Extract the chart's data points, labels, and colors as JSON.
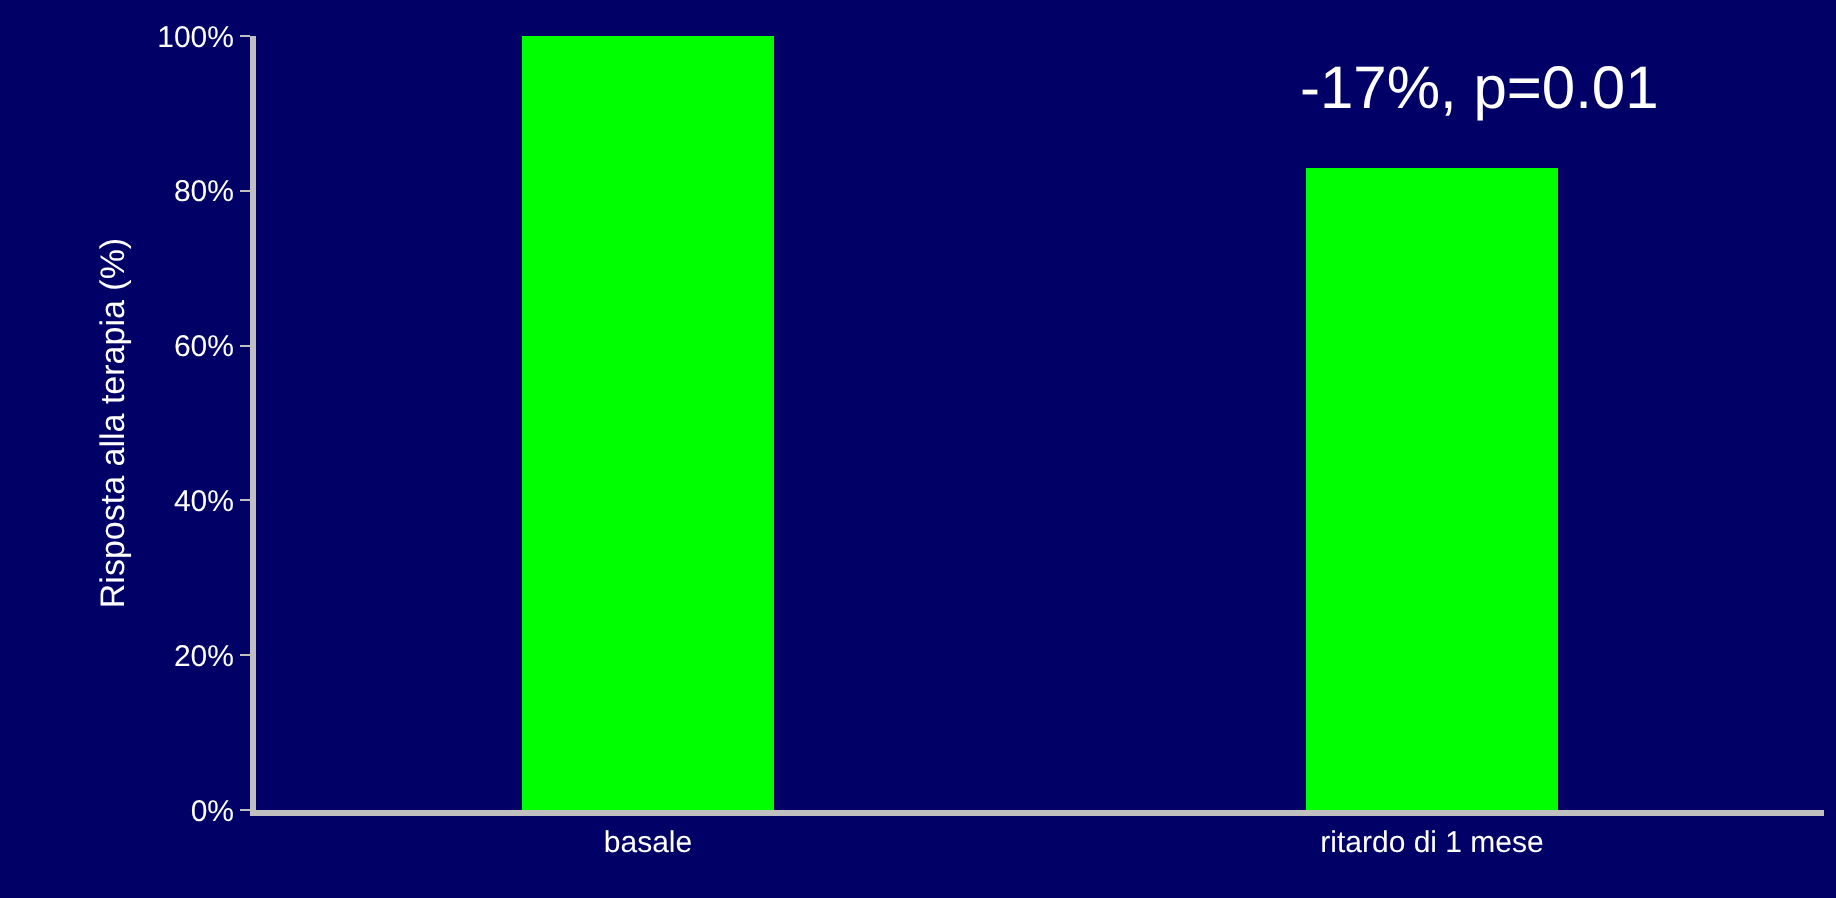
{
  "chart_data": {
    "type": "bar",
    "ylabel": "Risposta alla terapia (%)",
    "categories": [
      "basale",
      "ritardo di 1 mese"
    ],
    "values": [
      100,
      83
    ],
    "color": "#00ff00",
    "ylim": [
      0,
      100
    ],
    "yticks": [
      {
        "value": 0,
        "label": "0%"
      },
      {
        "value": 20,
        "label": "20%"
      },
      {
        "value": 40,
        "label": "40%"
      },
      {
        "value": 60,
        "label": "60%"
      },
      {
        "value": 80,
        "label": "80%"
      },
      {
        "value": 100,
        "label": "100%"
      }
    ],
    "grid": false,
    "annotations": [
      "-17%, p=0.01"
    ]
  }
}
